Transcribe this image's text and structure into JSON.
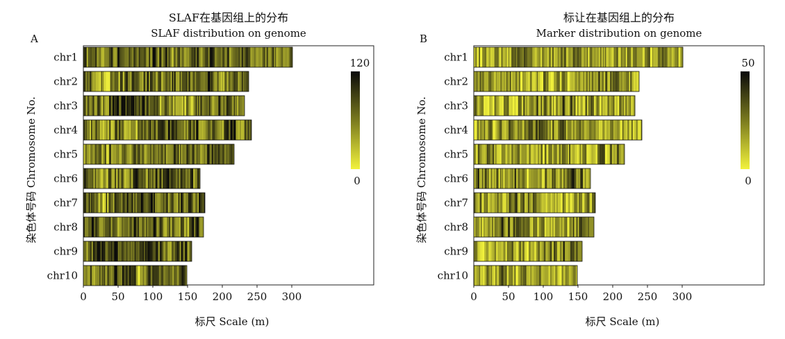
{
  "colors": {
    "low": "#f2f23c",
    "high": "#0a0a0a",
    "frame": "#222222"
  },
  "chart_data": [
    {
      "type": "heatmap",
      "panel_letter": "A",
      "title_cn": "SLAF在基因组上的分布",
      "title_en": "SLAF distribution on genome",
      "xlabel": "标尺 Scale (m)",
      "ylabel": "染色体号码 Chromosome No.",
      "xlim": [
        0,
        418
      ],
      "xticks": [
        0,
        50,
        100,
        150,
        200,
        250,
        300
      ],
      "colorbar": {
        "max_label": "120",
        "min_label": "0",
        "min": 0,
        "max": 120
      },
      "base_density": 0.62,
      "chromosomes": [
        {
          "name": "chr1",
          "length": 301
        },
        {
          "name": "chr2",
          "length": 238
        },
        {
          "name": "chr3",
          "length": 232
        },
        {
          "name": "chr4",
          "length": 242
        },
        {
          "name": "chr5",
          "length": 217
        },
        {
          "name": "chr6",
          "length": 168
        },
        {
          "name": "chr7",
          "length": 175
        },
        {
          "name": "chr8",
          "length": 173
        },
        {
          "name": "chr9",
          "length": 156
        },
        {
          "name": "chr10",
          "length": 149
        }
      ]
    },
    {
      "type": "heatmap",
      "panel_letter": "B",
      "title_cn": "标让在基因组上的分布",
      "title_en": "Marker distribution on genome",
      "xlabel": "标尺 Scale (m)",
      "ylabel": "染色体号码 Chromosome No.",
      "xlim": [
        0,
        418
      ],
      "xticks": [
        0,
        50,
        100,
        150,
        200,
        250,
        300
      ],
      "colorbar": {
        "max_label": "50",
        "min_label": "0",
        "min": 0,
        "max": 50
      },
      "base_density": 0.38,
      "chromosomes": [
        {
          "name": "chr1",
          "length": 301
        },
        {
          "name": "chr2",
          "length": 238
        },
        {
          "name": "chr3",
          "length": 232
        },
        {
          "name": "chr4",
          "length": 242
        },
        {
          "name": "chr5",
          "length": 217
        },
        {
          "name": "chr6",
          "length": 168
        },
        {
          "name": "chr7",
          "length": 175
        },
        {
          "name": "chr8",
          "length": 173
        },
        {
          "name": "chr9",
          "length": 156
        },
        {
          "name": "chr10",
          "length": 149
        }
      ]
    }
  ]
}
